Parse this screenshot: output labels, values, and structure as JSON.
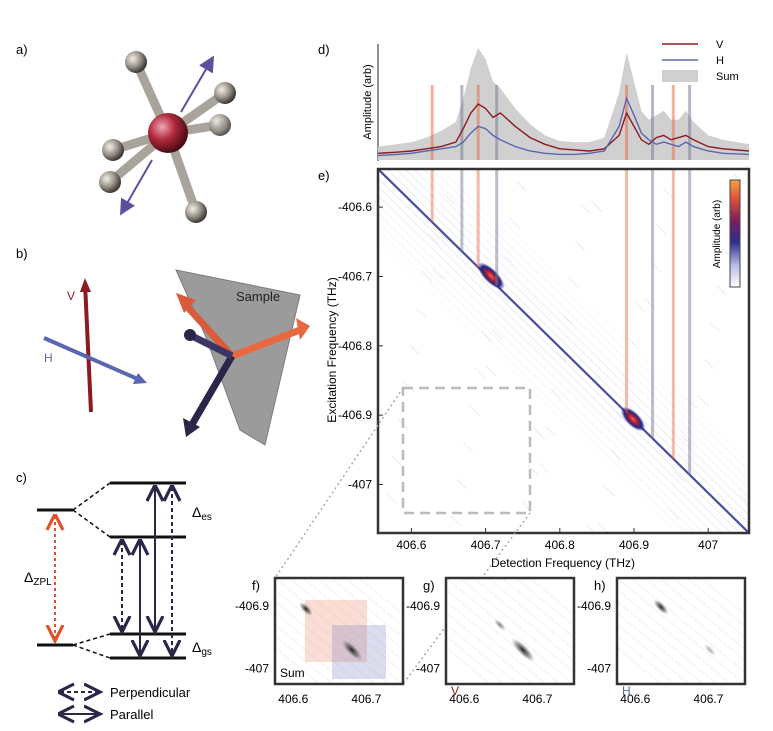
{
  "panels": {
    "a": "a)",
    "b": "b)",
    "c": "c)",
    "d": "d)",
    "e": "e)",
    "f": "f)",
    "g": "g)",
    "h": "h)"
  },
  "panel_b": {
    "v_label": "V",
    "h_label": "H",
    "sample_label": "Sample"
  },
  "panel_c": {
    "delta_es": "Δ",
    "delta_es_sub": "es",
    "delta_gs": "Δ",
    "delta_gs_sub": "gs",
    "delta_zpl": "Δ",
    "delta_zpl_sub": "ZPL",
    "legend_perpendicular": "Perpendicular",
    "legend_parallel": "Parallel"
  },
  "colors": {
    "v_line": "#8b1a22",
    "h_line": "#5a66b0",
    "sum_fill": "#d0d0d0",
    "orange": "#e8683f",
    "navy": "#2b2548",
    "zpl_arrow": "#e0522a"
  },
  "chart_data": [
    {
      "type": "line",
      "panel": "d",
      "ylabel": "Amplitude (arb)",
      "xlim": [
        406.555,
        407.055
      ],
      "legend": {
        "position": "top-right",
        "entries": [
          "V",
          "H",
          "Sum"
        ]
      },
      "series": [
        {
          "name": "V",
          "x": [
            406.555,
            406.58,
            406.6,
            406.62,
            406.64,
            406.66,
            406.67,
            406.68,
            406.69,
            406.7,
            406.71,
            406.72,
            406.74,
            406.76,
            406.78,
            406.8,
            406.82,
            406.84,
            406.86,
            406.88,
            406.89,
            406.9,
            406.91,
            406.92,
            406.93,
            406.94,
            406.95,
            406.96,
            406.97,
            406.98,
            407.0,
            407.02,
            407.055
          ],
          "values": [
            0.06,
            0.07,
            0.08,
            0.1,
            0.12,
            0.16,
            0.28,
            0.42,
            0.5,
            0.46,
            0.38,
            0.42,
            0.3,
            0.2,
            0.14,
            0.1,
            0.09,
            0.08,
            0.1,
            0.22,
            0.42,
            0.3,
            0.18,
            0.14,
            0.2,
            0.22,
            0.18,
            0.2,
            0.22,
            0.18,
            0.12,
            0.1,
            0.08
          ]
        },
        {
          "name": "H",
          "x": [
            406.555,
            406.58,
            406.6,
            406.62,
            406.64,
            406.66,
            406.67,
            406.68,
            406.69,
            406.7,
            406.71,
            406.72,
            406.74,
            406.76,
            406.78,
            406.8,
            406.82,
            406.84,
            406.86,
            406.88,
            406.89,
            406.9,
            406.91,
            406.92,
            406.93,
            406.94,
            406.95,
            406.96,
            406.97,
            406.98,
            407.0,
            407.02,
            407.055
          ],
          "values": [
            0.04,
            0.05,
            0.06,
            0.08,
            0.1,
            0.12,
            0.16,
            0.24,
            0.3,
            0.28,
            0.22,
            0.18,
            0.12,
            0.08,
            0.06,
            0.05,
            0.05,
            0.06,
            0.08,
            0.3,
            0.55,
            0.4,
            0.24,
            0.18,
            0.14,
            0.16,
            0.14,
            0.12,
            0.16,
            0.12,
            0.08,
            0.06,
            0.05
          ]
        },
        {
          "name": "Sum",
          "x": [
            406.555,
            406.58,
            406.6,
            406.62,
            406.64,
            406.66,
            406.67,
            406.68,
            406.69,
            406.7,
            406.71,
            406.72,
            406.74,
            406.76,
            406.78,
            406.8,
            406.82,
            406.84,
            406.86,
            406.88,
            406.89,
            406.9,
            406.91,
            406.92,
            406.93,
            406.94,
            406.95,
            406.96,
            406.97,
            406.98,
            407.0,
            407.02,
            407.055
          ],
          "values": [
            0.12,
            0.14,
            0.16,
            0.2,
            0.26,
            0.34,
            0.55,
            0.82,
            1.0,
            0.9,
            0.7,
            0.64,
            0.46,
            0.32,
            0.22,
            0.17,
            0.16,
            0.16,
            0.2,
            0.6,
            0.96,
            0.7,
            0.44,
            0.36,
            0.4,
            0.44,
            0.36,
            0.36,
            0.44,
            0.34,
            0.22,
            0.18,
            0.14
          ]
        }
      ],
      "markers_orange": [
        406.628,
        406.69,
        406.89,
        406.953
      ],
      "markers_gray": [
        406.668,
        406.715,
        406.925,
        406.975
      ]
    },
    {
      "type": "heatmap",
      "panel": "e",
      "xlabel": "Detection Frequency (THz)",
      "ylabel": "Excitation Frequency (THz)",
      "colorbar_label": "Amplitude (arb)",
      "xlim": [
        406.555,
        407.055
      ],
      "ylim": [
        -407.07,
        -406.545
      ],
      "xticks": [
        406.6,
        406.7,
        406.8,
        406.9,
        407.0
      ],
      "xtick_labels": [
        "406.6",
        "406.7",
        "406.8",
        "406.9",
        "407"
      ],
      "yticks": [
        -406.6,
        -406.7,
        -406.8,
        -406.9,
        -407.0
      ],
      "ytick_labels": [
        "-406.6",
        "-406.7",
        "-406.8",
        "-406.9",
        "-407"
      ],
      "peaks": [
        {
          "x": 406.7,
          "y": -406.7,
          "value": 1.0
        },
        {
          "x": 406.89,
          "y": -406.9,
          "value": 1.0
        }
      ],
      "zoom_box": {
        "x": [
          406.575,
          406.75
        ],
        "y": [
          -407.025,
          -406.855
        ]
      }
    },
    {
      "type": "heatmap",
      "panel": "f",
      "label": "Sum",
      "xticks": [
        406.6,
        406.7
      ],
      "xtick_labels": [
        "406.6",
        "406.7"
      ],
      "yticks": [
        -406.9,
        -407.0
      ],
      "ytick_labels": [
        "-406.9",
        "-407"
      ]
    },
    {
      "type": "heatmap",
      "panel": "g",
      "label": "V",
      "xticks": [
        406.6,
        406.7
      ],
      "xtick_labels": [
        "406.6",
        "406.7"
      ],
      "yticks": [
        -406.9,
        -407.0
      ],
      "ytick_labels": [
        "-406.9",
        "-407"
      ]
    },
    {
      "type": "heatmap",
      "panel": "h",
      "label": "H",
      "xticks": [
        406.6,
        406.7
      ],
      "xtick_labels": [
        "406.6",
        "406.7"
      ],
      "yticks": [
        -406.9,
        -407.0
      ],
      "ytick_labels": [
        "-406.9",
        "-407"
      ]
    }
  ]
}
